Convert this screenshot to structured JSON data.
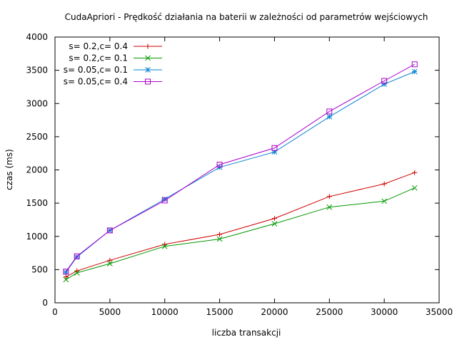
{
  "chart_data": {
    "type": "line",
    "title": "CudaApriori - Prędkość działania na baterii w zależności od parametrów wejściowych",
    "xlabel": "liczba transakcji",
    "ylabel": "czas (ms)",
    "xlim": [
      0,
      35000
    ],
    "ylim": [
      0,
      4000
    ],
    "xticks": [
      0,
      5000,
      10000,
      15000,
      20000,
      25000,
      30000,
      35000
    ],
    "yticks": [
      0,
      500,
      1000,
      1500,
      2000,
      2500,
      3000,
      3500,
      4000
    ],
    "grid": false,
    "legend_position": "top-left",
    "x": [
      1000,
      2000,
      5000,
      10000,
      15000,
      20000,
      25000,
      30000,
      32768
    ],
    "series": [
      {
        "name": "s= 0.2,c= 0.4",
        "color": "#cc0000",
        "marker": "plus",
        "values": [
          390,
          480,
          640,
          880,
          1030,
          1270,
          1600,
          1790,
          1960
        ]
      },
      {
        "name": "s= 0.2,c= 0.1",
        "color": "#009900",
        "marker": "cross",
        "values": [
          350,
          450,
          590,
          850,
          960,
          1190,
          1440,
          1530,
          1730
        ]
      },
      {
        "name": "s= 0.05,c= 0.1",
        "color": "#0a84d0",
        "marker": "star",
        "values": [
          460,
          690,
          1090,
          1560,
          2040,
          2270,
          2800,
          3290,
          3480
        ]
      },
      {
        "name": "s= 0.05,c= 0.4",
        "color": "#aa00cc",
        "marker": "square",
        "values": [
          470,
          700,
          1090,
          1540,
          2080,
          2330,
          2880,
          3340,
          3590
        ]
      }
    ]
  }
}
